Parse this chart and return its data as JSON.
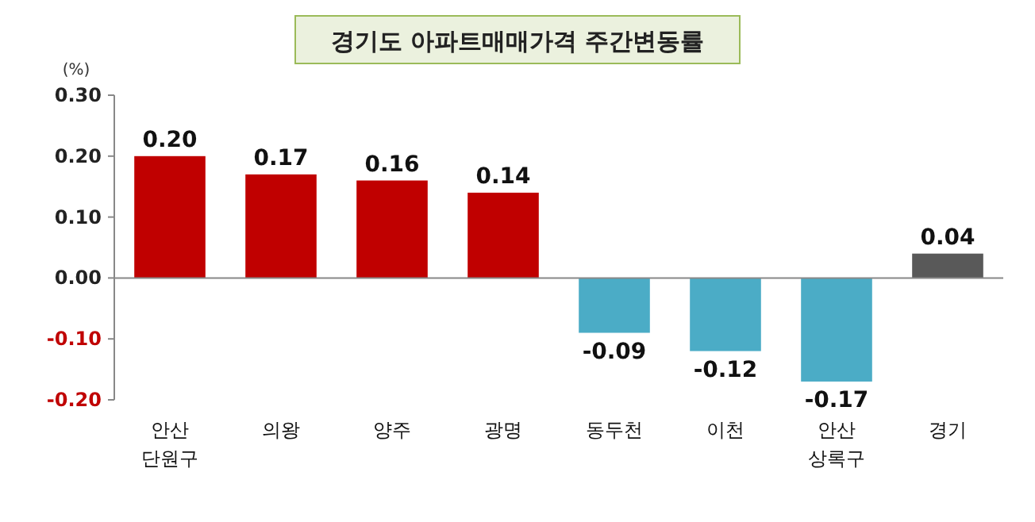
{
  "chart_data": {
    "type": "bar",
    "title": "경기도 아파트매매가격 주간변동률",
    "ylabel": "(%)",
    "categories": [
      "안산\n단원구",
      "의왕",
      "양주",
      "광명",
      "동두천",
      "이천",
      "안산\n상록구",
      "경기"
    ],
    "values": [
      0.2,
      0.17,
      0.16,
      0.14,
      -0.09,
      -0.12,
      -0.17,
      0.04
    ],
    "colors": [
      "#c00000",
      "#c00000",
      "#c00000",
      "#c00000",
      "#4bacc6",
      "#4bacc6",
      "#4bacc6",
      "#595959"
    ],
    "value_labels": [
      "0.20",
      "0.17",
      "0.16",
      "0.14",
      "-0.09",
      "-0.12",
      "-0.17",
      "0.04"
    ],
    "ylim": [
      -0.2,
      0.3
    ],
    "yticks": [
      {
        "value": 0.3,
        "label": "0.30"
      },
      {
        "value": 0.2,
        "label": "0.20"
      },
      {
        "value": 0.1,
        "label": "0.10"
      },
      {
        "value": 0,
        "label": "0.00"
      },
      {
        "value": -0.1,
        "label": "-0.10"
      },
      {
        "value": -0.2,
        "label": "-0.20"
      }
    ]
  }
}
